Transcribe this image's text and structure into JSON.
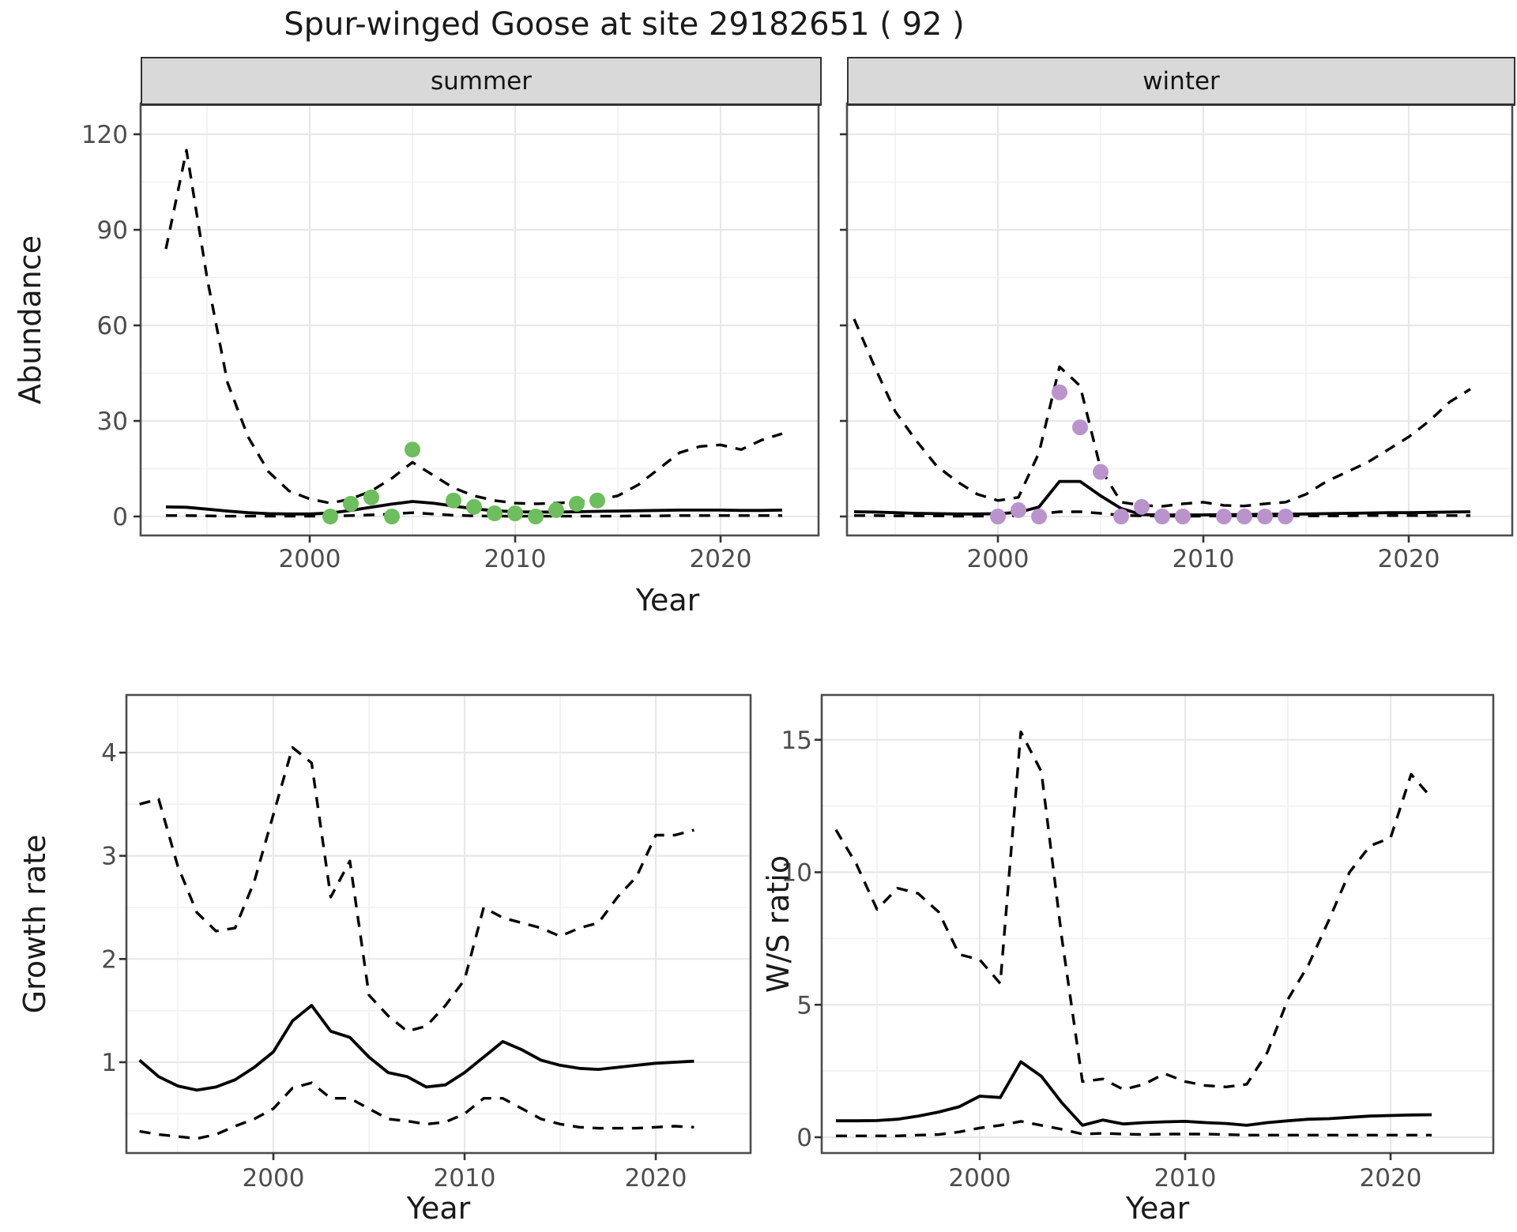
{
  "title": "Spur-winged Goose at site 29182651 ( 92 )",
  "axis": {
    "x_label": "Year",
    "abundance_label": "Abundance",
    "growth_label": "Growth rate",
    "ws_label": "W/S ratio"
  },
  "colors": {
    "observed_summer": "#6DBE5C",
    "observed_winter": "#BB93CC",
    "line": "#000000",
    "strip_bg": "#D9D9D9",
    "panel_border": "#4D4D4D",
    "grid_major": "#E8E8E8",
    "grid_minor": "#F2F2F2",
    "tick_label": "#4D4D4D"
  },
  "chart_data": [
    {
      "id": "abundance_summer",
      "type": "line",
      "facet_label": "summer",
      "xlabel": "Year",
      "ylabel": "Abundance",
      "x_ticks": [
        2000,
        2010,
        2020
      ],
      "y_ticks": [
        0,
        30,
        60,
        90,
        120
      ],
      "xlim": [
        1991.8,
        2024.9
      ],
      "ylim": [
        -6,
        129
      ],
      "grid": true,
      "years": [
        1993,
        1994,
        1995,
        1996,
        1997,
        1998,
        1999,
        2000,
        2001,
        2002,
        2003,
        2004,
        2005,
        2006,
        2007,
        2008,
        2009,
        2010,
        2011,
        2012,
        2013,
        2014,
        2015,
        2016,
        2017,
        2018,
        2019,
        2020,
        2021,
        2022,
        2023
      ],
      "series": [
        {
          "name": "upper_ci",
          "style": "dashed",
          "values": [
            84,
            115,
            75,
            42,
            25,
            14,
            8,
            5.5,
            4.2,
            5.5,
            8,
            12,
            17,
            13,
            9,
            6.5,
            5,
            4.2,
            4.0,
            4.2,
            4.6,
            5.2,
            6.5,
            10,
            15,
            20,
            22,
            22.5,
            21,
            24,
            26
          ]
        },
        {
          "name": "lower_ci",
          "style": "dashed",
          "values": [
            0.3,
            0.3,
            0.2,
            0.1,
            0.1,
            0.1,
            0.1,
            0.1,
            0.1,
            0.3,
            0.5,
            0.8,
            1.2,
            0.8,
            0.4,
            0.2,
            0.1,
            0.1,
            0.1,
            0.1,
            0.1,
            0.1,
            0.1,
            0.2,
            0.2,
            0.3,
            0.3,
            0.3,
            0.3,
            0.3,
            0.3
          ]
        },
        {
          "name": "median",
          "style": "solid",
          "values": [
            3.0,
            2.9,
            2.3,
            1.7,
            1.2,
            0.9,
            0.8,
            0.8,
            1.1,
            1.9,
            2.9,
            3.9,
            4.7,
            4.2,
            3.3,
            2.4,
            1.8,
            1.5,
            1.4,
            1.4,
            1.5,
            1.6,
            1.7,
            1.8,
            1.9,
            2.0,
            2.0,
            2.0,
            1.9,
            1.9,
            2.0
          ]
        }
      ],
      "points": {
        "name": "observed_counts",
        "color_key": "observed_summer",
        "years": [
          2001,
          2002,
          2003,
          2004,
          2005,
          2007,
          2008,
          2009,
          2010,
          2011,
          2012,
          2013,
          2014
        ],
        "values": [
          0,
          4,
          6,
          0,
          21,
          5,
          3,
          1,
          1,
          0,
          2,
          4,
          5
        ]
      }
    },
    {
      "id": "abundance_winter",
      "type": "line",
      "facet_label": "winter",
      "xlabel": "Year",
      "ylabel": "Abundance",
      "x_ticks": [
        2000,
        2010,
        2020
      ],
      "y_ticks": [
        0,
        30,
        60,
        90,
        120
      ],
      "xlim": [
        1992.6,
        2025.2
      ],
      "ylim": [
        -6,
        129
      ],
      "grid": true,
      "years": [
        1993,
        1994,
        1995,
        1996,
        1997,
        1998,
        1999,
        2000,
        2001,
        2002,
        2003,
        2004,
        2005,
        2006,
        2007,
        2008,
        2009,
        2010,
        2011,
        2012,
        2013,
        2014,
        2015,
        2016,
        2017,
        2018,
        2019,
        2020,
        2021,
        2022,
        2023
      ],
      "series": [
        {
          "name": "upper_ci",
          "style": "dashed",
          "values": [
            62,
            47,
            33,
            24,
            16,
            11,
            7,
            5,
            6,
            20,
            47,
            41,
            15,
            4.5,
            3.5,
            3.2,
            4,
            4.5,
            3.5,
            3.3,
            4,
            4.5,
            7,
            11,
            14,
            17,
            21,
            25,
            30,
            36,
            40
          ]
        },
        {
          "name": "lower_ci",
          "style": "dashed",
          "values": [
            0.3,
            0.3,
            0.2,
            0.2,
            0.2,
            0.1,
            0.1,
            0.2,
            0.3,
            0.8,
            1.5,
            1.5,
            1.0,
            0.4,
            0.2,
            0.1,
            0.1,
            0.1,
            0.2,
            0.2,
            0.2,
            0.2,
            0.2,
            0.2,
            0.2,
            0.3,
            0.3,
            0.3,
            0.3,
            0.3,
            0.3
          ]
        },
        {
          "name": "median",
          "style": "solid",
          "values": [
            1.5,
            1.4,
            1.2,
            1.0,
            0.9,
            0.8,
            0.8,
            0.9,
            1.3,
            3.0,
            11.0,
            11.0,
            6.5,
            2.5,
            0.6,
            0.5,
            0.5,
            0.5,
            0.6,
            0.6,
            0.7,
            0.7,
            0.8,
            0.9,
            1.0,
            1.1,
            1.2,
            1.2,
            1.3,
            1.4,
            1.5
          ]
        }
      ],
      "points": {
        "name": "observed_counts",
        "color_key": "observed_winter",
        "years": [
          2000,
          2001,
          2002,
          2003,
          2004,
          2005,
          2006,
          2007,
          2008,
          2009,
          2011,
          2012,
          2013,
          2014
        ],
        "values": [
          0,
          2,
          0,
          39,
          28,
          14,
          0,
          3,
          0,
          0,
          0,
          0,
          0,
          0
        ]
      }
    },
    {
      "id": "growth_rate",
      "type": "line",
      "facet_label": "",
      "xlabel": "Year",
      "ylabel": "Growth rate",
      "x_ticks": [
        2000,
        2010,
        2020
      ],
      "y_ticks": [
        1,
        2,
        3,
        4
      ],
      "xlim": [
        1992.3,
        2025.0
      ],
      "ylim": [
        0.12,
        4.56
      ],
      "grid": true,
      "years": [
        1993,
        1994,
        1995,
        1996,
        1997,
        1998,
        1999,
        2000,
        2001,
        2002,
        2003,
        2004,
        2005,
        2006,
        2007,
        2008,
        2009,
        2010,
        2011,
        2012,
        2013,
        2014,
        2015,
        2016,
        2017,
        2018,
        2019,
        2020,
        2021,
        2022
      ],
      "series": [
        {
          "name": "upper_ci",
          "style": "dashed",
          "values": [
            3.5,
            3.55,
            2.9,
            2.45,
            2.27,
            2.3,
            2.75,
            3.4,
            4.05,
            3.9,
            2.6,
            2.95,
            1.65,
            1.45,
            1.3,
            1.35,
            1.55,
            1.8,
            2.5,
            2.4,
            2.35,
            2.3,
            2.22,
            2.3,
            2.35,
            2.6,
            2.8,
            3.2,
            3.2,
            3.25
          ]
        },
        {
          "name": "lower_ci",
          "style": "dashed",
          "values": [
            0.33,
            0.3,
            0.28,
            0.26,
            0.3,
            0.38,
            0.45,
            0.55,
            0.75,
            0.8,
            0.65,
            0.65,
            0.55,
            0.45,
            0.43,
            0.4,
            0.42,
            0.5,
            0.65,
            0.65,
            0.55,
            0.45,
            0.4,
            0.37,
            0.36,
            0.36,
            0.36,
            0.37,
            0.38,
            0.37
          ]
        },
        {
          "name": "median",
          "style": "solid",
          "values": [
            1.02,
            0.86,
            0.77,
            0.73,
            0.76,
            0.83,
            0.95,
            1.1,
            1.4,
            1.55,
            1.3,
            1.24,
            1.05,
            0.9,
            0.86,
            0.76,
            0.78,
            0.9,
            1.05,
            1.2,
            1.12,
            1.02,
            0.97,
            0.94,
            0.93,
            0.95,
            0.97,
            0.99,
            1.0,
            1.01
          ]
        }
      ]
    },
    {
      "id": "ws_ratio",
      "type": "line",
      "facet_label": "",
      "xlabel": "Year",
      "ylabel": "W/S ratio",
      "x_ticks": [
        2000,
        2010,
        2020
      ],
      "y_ticks": [
        0,
        5,
        10,
        15
      ],
      "xlim": [
        1992.3,
        2025.0
      ],
      "ylim": [
        -0.6,
        16.7
      ],
      "grid": true,
      "years": [
        1993,
        1994,
        1995,
        1996,
        1997,
        1998,
        1999,
        2000,
        2001,
        2002,
        2003,
        2004,
        2005,
        2006,
        2007,
        2008,
        2009,
        2010,
        2011,
        2012,
        2013,
        2014,
        2015,
        2016,
        2017,
        2018,
        2019,
        2020,
        2021,
        2022
      ],
      "series": [
        {
          "name": "upper_ci",
          "style": "dashed",
          "values": [
            11.6,
            10.3,
            8.6,
            9.4,
            9.2,
            8.5,
            6.9,
            6.7,
            5.8,
            15.3,
            13.8,
            7.5,
            2.1,
            2.2,
            1.8,
            2.0,
            2.4,
            2.1,
            1.95,
            1.9,
            2.0,
            3.2,
            5.2,
            6.5,
            8.2,
            10.0,
            11.0,
            11.3,
            13.7,
            12.8
          ]
        },
        {
          "name": "lower_ci",
          "style": "dashed",
          "values": [
            0.05,
            0.05,
            0.05,
            0.05,
            0.08,
            0.1,
            0.2,
            0.35,
            0.45,
            0.6,
            0.45,
            0.3,
            0.12,
            0.15,
            0.12,
            0.1,
            0.12,
            0.12,
            0.12,
            0.1,
            0.08,
            0.08,
            0.08,
            0.08,
            0.08,
            0.08,
            0.08,
            0.08,
            0.08,
            0.08
          ]
        },
        {
          "name": "median",
          "style": "solid",
          "values": [
            0.62,
            0.62,
            0.63,
            0.68,
            0.8,
            0.95,
            1.15,
            1.55,
            1.5,
            2.85,
            2.3,
            1.3,
            0.45,
            0.65,
            0.5,
            0.55,
            0.58,
            0.6,
            0.55,
            0.52,
            0.45,
            0.55,
            0.62,
            0.68,
            0.7,
            0.75,
            0.8,
            0.82,
            0.84,
            0.85
          ]
        }
      ]
    }
  ]
}
